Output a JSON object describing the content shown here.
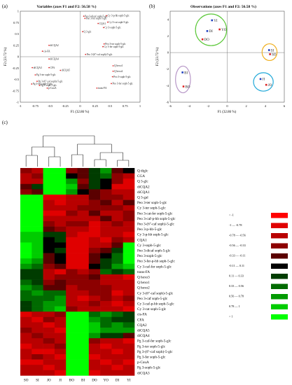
{
  "panel_a": {
    "letter": "(a)",
    "title": "Variables (axes F1 and F2: 56.58 %)",
    "xlabel": "F1 (32.86 %)",
    "ylabel": "F2 (23.72 %)",
    "xticks": [
      "-1",
      "-0.75",
      "-0.5",
      "-0.25",
      "0",
      "0.25",
      "0.5",
      "0.75",
      "1"
    ],
    "yticks": [
      "1",
      "0.75",
      "0.5",
      "0.25",
      "0",
      "-0.25",
      "-0.5",
      "-0.75",
      "-1"
    ]
  },
  "panel_b": {
    "letter": "(b)",
    "title": "Observations (axes F1 and F2: 56.58 %)",
    "xlabel": "F1 (32.86 %)",
    "ylabel": "F2 (23.72 %)",
    "xticks": [
      "-6",
      "-4",
      "-2",
      "0",
      "2",
      "4",
      "6"
    ],
    "yticks": [
      "4",
      "2",
      "0",
      "-2",
      "-4",
      "-6"
    ]
  },
  "panel_c": {
    "letter": "(c)"
  },
  "chart_data": [
    {
      "type": "scatter",
      "name": "variables-loading-plot",
      "title": "Variables (axes F1 and F2: 56.58 %)",
      "xlabel": "F1 (32.86 %)",
      "ylabel": "F2 (23.72 %)",
      "xlim": [
        -1,
        1
      ],
      "ylim": [
        -1,
        1
      ],
      "points": [
        {
          "label": "Peo 3-dicaf soph-5-glc",
          "x": 0.06,
          "y": 0.89
        },
        {
          "label": "Peo 3-fer soph-5-glc",
          "x": 0.08,
          "y": 0.84
        },
        {
          "label": "Cy 3-p-hb soph-5-glc",
          "x": 0.44,
          "y": 0.9
        },
        {
          "label": "CQA1",
          "x": 0.3,
          "y": 0.73
        },
        {
          "label": "Cy 3-cat soph-5-glc",
          "x": 0.46,
          "y": 0.76
        },
        {
          "label": "Cy 3-soph-5-glc",
          "x": 0.39,
          "y": 0.64
        },
        {
          "label": "Q 3-glc",
          "x": 0.04,
          "y": 0.55
        },
        {
          "label": "diCQA2",
          "x": -0.52,
          "y": 0.25
        },
        {
          "label": "cis-FA",
          "x": -0.63,
          "y": 0.12
        },
        {
          "label": "Peo 3-ter soph-5-glc",
          "x": 0.4,
          "y": 0.28
        },
        {
          "label": "Cy 3-fer soph-5-glc",
          "x": 0.38,
          "y": 0.22
        },
        {
          "label": "Peo 3-(6''-caf soph)-5-glc",
          "x": 0.09,
          "y": 0.05
        },
        {
          "label": "diCQA4",
          "x": -0.52,
          "y": -0.05
        },
        {
          "label": "diCQA3",
          "x": -0.8,
          "y": -0.24
        },
        {
          "label": "CFA",
          "x": -0.52,
          "y": -0.24
        },
        {
          "label": "diCQA5",
          "x": -0.33,
          "y": -0.3
        },
        {
          "label": "Q hexo1",
          "x": 0.55,
          "y": -0.2
        },
        {
          "label": "Q hexo2",
          "x": 0.55,
          "y": -0.32
        },
        {
          "label": "Peo 3-soph-5-glc",
          "x": 0.54,
          "y": -0.44
        },
        {
          "label": "Pg 3-ter soph-5-glc",
          "x": -0.75,
          "y": -0.4
        },
        {
          "label": "Pg 3-(6''-caf soph)-5-glc",
          "x": -0.72,
          "y": -0.54
        },
        {
          "label": "Pg 3-fer soph-5-glc",
          "x": -0.81,
          "y": -0.6
        },
        {
          "label": "Pg 3-soph-5-glc",
          "x": -0.68,
          "y": -0.63
        },
        {
          "label": "p-CouA",
          "x": -0.55,
          "y": -0.69
        },
        {
          "label": "Peo 3-fer soph-5-glc",
          "x": 0.52,
          "y": -0.59
        },
        {
          "label": "trans-FA",
          "x": 0.28,
          "y": -0.69
        }
      ]
    },
    {
      "type": "scatter",
      "name": "observations-score-plot",
      "title": "Observations (axes F1 and F2: 56.58 %)",
      "xlabel": "F1 (32.86 %)",
      "ylabel": "F2 (23.72 %)",
      "xlim": [
        -6,
        6
      ],
      "ylim": [
        -6,
        5
      ],
      "points": [
        {
          "label": "YI",
          "x": -1.6,
          "y": 3.9
        },
        {
          "label": "DI",
          "x": -2.1,
          "y": 2.6
        },
        {
          "label": "YO",
          "x": -0.8,
          "y": 2.8
        },
        {
          "label": "DO",
          "x": -2.6,
          "y": 1.6
        },
        {
          "label": "SI",
          "x": 4.4,
          "y": 0.3
        },
        {
          "label": "SO",
          "x": 4.5,
          "y": -0.2
        },
        {
          "label": "BI",
          "x": -4.7,
          "y": -2.4
        },
        {
          "label": "BO",
          "x": -4.6,
          "y": -4.1
        },
        {
          "label": "JI",
          "x": 3.5,
          "y": -3.2
        },
        {
          "label": "JO",
          "x": 4.1,
          "y": -3.9
        }
      ],
      "groups": [
        {
          "members": [
            "YI",
            "DI",
            "YO",
            "DO"
          ],
          "color": "#5cc83a"
        },
        {
          "members": [
            "SI",
            "SO"
          ],
          "color": "#f0b020"
        },
        {
          "members": [
            "BI",
            "BO"
          ],
          "color": "#b898c8"
        },
        {
          "members": [
            "JI",
            "JO"
          ],
          "color": "#1fa8d8"
        }
      ]
    },
    {
      "type": "heatmap",
      "name": "clustered-heatmap",
      "columns": [
        "SO",
        "SI",
        "JO",
        "JI",
        "BO",
        "BI",
        "DO",
        "YO",
        "DI",
        "YI"
      ],
      "rows": [
        "Q diglc",
        "CGA",
        "Q 3-glc",
        "diCQA2",
        "diCQA1",
        "Q 3-gal",
        "Peo 3-ter soph-5-glc",
        "Cy 3-ter soph-5-glc",
        "Peo 3-cat-fer soph-5-glc",
        "Peo 3-caf-p-hb soph-5-glc",
        "Peo 3-(6''-caf soph)-5-glc",
        "Peo 3-p-hb-5-glc",
        "Cy 3-p-hb soph-5-glc",
        "CQA1",
        "Cy 3-soph-5-glc",
        "Peo 3-dicaf soph-5-glc",
        "Peo 3-soph-5-glc",
        "Peo 3-fer-p-hb soph-5-glc",
        "Cy 3-caf-fer soph-5-glc",
        "trans-FA",
        "Q hexo3",
        "Q hexo1",
        "Q hexo2",
        "Cy 3-(6''-caf soph)-5-glc",
        "Peo 3-caf soph-5-glc",
        "Cy 3-caf-p-hb soph-5-glc",
        "Cy 3-cat soph-5-glc",
        "cis-FA",
        "CFA",
        "CQA2",
        "diCQA5",
        "diCQA4",
        "Pg 3-caf-fer soph-5-glc",
        "Pg 3-ter soph-5-glc",
        "Pg 3-(6''-caf soph)-5-glc",
        "Pg 3-fer soph-5-glc",
        "p-CouA",
        "Pg 3-soph-5-glc",
        "diCQA3"
      ],
      "values": [
        [
          -0.5,
          -0.6,
          1.0,
          1.0,
          -0.4,
          -0.3,
          0.2,
          0.6,
          -0.3,
          0.1
        ],
        [
          -0.6,
          -0.5,
          1.0,
          1.0,
          0.1,
          -0.2,
          0.3,
          0.5,
          -0.5,
          -0.6
        ],
        [
          -0.7,
          -0.6,
          1.0,
          1.0,
          0.6,
          -0.5,
          0.3,
          0.0,
          -0.4,
          -0.8
        ],
        [
          -0.2,
          0.2,
          1.0,
          1.0,
          0.8,
          -0.3,
          0.2,
          -0.1,
          -0.8,
          -0.9
        ],
        [
          -0.5,
          -0.3,
          1.0,
          1.0,
          0.7,
          -0.1,
          -0.3,
          -0.5,
          -0.7,
          -0.6
        ],
        [
          1.0,
          1.0,
          -0.8,
          -0.9,
          -0.6,
          -0.7,
          -0.3,
          -0.5,
          -0.4,
          -0.7
        ],
        [
          1.0,
          1.0,
          -0.6,
          -0.8,
          -0.7,
          -0.7,
          -0.4,
          -0.3,
          -0.6,
          -0.3
        ],
        [
          1.0,
          1.0,
          -0.7,
          -0.7,
          -0.6,
          -0.5,
          -0.5,
          -0.4,
          -0.5,
          -0.6
        ],
        [
          1.0,
          1.0,
          -0.8,
          -0.8,
          -0.5,
          -0.6,
          -0.3,
          -0.6,
          -0.6,
          -0.5
        ],
        [
          1.0,
          1.0,
          -0.6,
          -0.7,
          -0.7,
          -0.6,
          -0.6,
          -0.3,
          -0.6,
          -0.5
        ],
        [
          1.0,
          1.0,
          -0.5,
          -0.6,
          -0.5,
          -0.5,
          -0.8,
          -0.6,
          -0.5,
          -0.6
        ],
        [
          1.0,
          1.0,
          -0.3,
          -0.4,
          -0.6,
          -0.7,
          -0.8,
          -0.7,
          -0.6,
          -0.7
        ],
        [
          0.9,
          0.9,
          0.2,
          0.3,
          -0.7,
          -0.8,
          -0.8,
          -0.7,
          -0.6,
          -0.8
        ],
        [
          0.8,
          0.9,
          0.1,
          0.3,
          -0.8,
          -0.8,
          -0.7,
          -0.9,
          -0.5,
          -0.7
        ],
        [
          1.0,
          0.8,
          0.0,
          0.1,
          -0.9,
          -0.9,
          -0.7,
          -0.6,
          -0.2,
          1.0
        ],
        [
          1.0,
          0.9,
          0.1,
          0.2,
          -0.8,
          -0.9,
          -0.5,
          -0.2,
          0.3,
          1.0
        ],
        [
          1.0,
          0.8,
          -0.2,
          -0.1,
          -0.9,
          -1.0,
          -0.3,
          0.0,
          0.4,
          1.0
        ],
        [
          0.9,
          0.7,
          -0.3,
          -0.1,
          -0.9,
          -0.9,
          -0.2,
          0.2,
          0.5,
          1.0
        ],
        [
          0.7,
          0.5,
          -0.4,
          -0.3,
          -0.8,
          -0.8,
          -0.1,
          0.2,
          0.6,
          0.8
        ],
        [
          0.2,
          0.3,
          -0.7,
          -0.8,
          -0.5,
          -0.6,
          -0.4,
          0.5,
          0.3,
          0.4
        ],
        [
          0.3,
          0.2,
          -0.6,
          -0.5,
          -0.4,
          -0.4,
          -0.2,
          -0.6,
          -0.7,
          -0.9
        ],
        [
          0.4,
          0.3,
          -0.4,
          -0.3,
          -0.5,
          -0.5,
          -0.4,
          -0.6,
          -0.6,
          -0.7
        ],
        [
          0.6,
          0.4,
          -0.3,
          -0.2,
          -0.6,
          -0.5,
          -0.4,
          -0.5,
          -0.6,
          -0.6
        ],
        [
          0.5,
          0.6,
          0.4,
          0.5,
          -0.7,
          -0.7,
          -0.5,
          -0.5,
          -0.8,
          -0.6
        ],
        [
          0.4,
          0.5,
          0.5,
          0.6,
          -0.7,
          -0.8,
          -0.6,
          -0.4,
          -0.7,
          -0.5
        ],
        [
          0.3,
          0.5,
          0.6,
          0.7,
          -0.6,
          -0.7,
          -0.5,
          -0.6,
          -0.8,
          -0.7
        ],
        [
          0.2,
          0.4,
          0.7,
          0.8,
          -0.5,
          -0.6,
          -0.7,
          -0.6,
          -0.7,
          -0.8
        ],
        [
          -0.8,
          -0.6,
          -0.6,
          -0.4,
          1.0,
          1.0,
          0.5,
          0.7,
          0.4,
          0.2
        ],
        [
          -0.7,
          -0.8,
          -0.5,
          -0.6,
          1.0,
          1.0,
          0.6,
          0.5,
          0.3,
          0.3
        ],
        [
          -0.6,
          -0.7,
          -0.8,
          -0.7,
          1.0,
          1.0,
          0.8,
          0.4,
          0.6,
          0.5
        ],
        [
          -0.5,
          -0.6,
          -0.6,
          -0.8,
          1.0,
          1.0,
          0.9,
          0.6,
          0.7,
          0.6
        ],
        [
          -0.7,
          -0.5,
          -0.7,
          -0.6,
          1.0,
          1.0,
          0.7,
          0.3,
          0.2,
          -0.2
        ],
        [
          -0.6,
          -0.7,
          -0.5,
          -0.6,
          1.0,
          1.0,
          -0.5,
          -0.7,
          -0.6,
          -0.8
        ],
        [
          -0.8,
          -0.7,
          -0.6,
          -0.5,
          1.0,
          1.0,
          -0.7,
          -0.8,
          -0.7,
          -0.7
        ],
        [
          -0.7,
          -0.8,
          -0.8,
          -0.7,
          1.0,
          1.0,
          -0.6,
          -0.7,
          -0.8,
          -0.6
        ],
        [
          -0.6,
          -0.5,
          -0.7,
          -0.8,
          1.0,
          1.0,
          -0.8,
          -0.6,
          -0.6,
          -0.7
        ],
        [
          -0.8,
          -0.8,
          -0.6,
          -0.6,
          1.0,
          1.0,
          -0.7,
          -0.8,
          -0.7,
          -0.8
        ],
        [
          -0.7,
          -0.6,
          -0.8,
          -0.7,
          1.0,
          1.0,
          -0.6,
          -0.7,
          -0.8,
          -0.6
        ],
        [
          -0.6,
          -0.7,
          -0.7,
          -0.8,
          1.0,
          1.0,
          -0.8,
          -0.6,
          -0.7,
          -0.7
        ]
      ],
      "legend": [
        {
          "label": "< -1",
          "color": "#ff0000"
        },
        {
          "label": "-1 — -0.78",
          "color": "#e00000"
        },
        {
          "label": "-0.78 — -0.56",
          "color": "#b80000"
        },
        {
          "label": "-0.56 — -0.33",
          "color": "#8c0000"
        },
        {
          "label": "-0.33 — -0.11",
          "color": "#5a0000"
        },
        {
          "label": "-0.11 — 0.11",
          "color": "#000000"
        },
        {
          "label": "0.11 — 0.33",
          "color": "#003c00"
        },
        {
          "label": "0.33 — 0.56",
          "color": "#006a00"
        },
        {
          "label": "0.56 — 0.78",
          "color": "#009a00"
        },
        {
          "label": "0.78 — 1",
          "color": "#00cc00"
        },
        {
          "label": "> 1",
          "color": "#00ff00"
        }
      ],
      "dendrogram_order": [
        "SO",
        "SI",
        "JO",
        "JI",
        "BO",
        "BI",
        "DO",
        "YO",
        "DI",
        "YI"
      ]
    }
  ]
}
